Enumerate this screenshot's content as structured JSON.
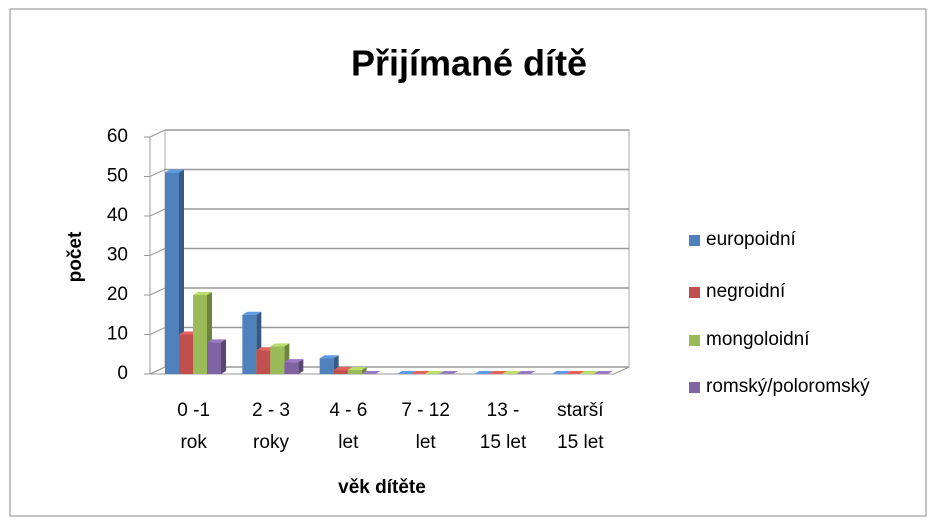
{
  "chart_data": {
    "type": "bar3d",
    "title": "Přijímané dítě",
    "x_label": "věk dítěte",
    "y_label": "počet",
    "categories": [
      [
        "0 -1",
        "rok"
      ],
      [
        "2 - 3",
        "roky"
      ],
      [
        "4 - 6",
        "let"
      ],
      [
        "7 - 12",
        "let"
      ],
      [
        "13 -",
        "15 let"
      ],
      [
        "starší",
        "15 let"
      ]
    ],
    "series": [
      {
        "name": "europoidní",
        "color": "#4f81bd",
        "values": [
          51,
          15,
          4,
          0,
          0,
          0
        ]
      },
      {
        "name": "negroidní",
        "color": "#c0504d",
        "values": [
          10,
          6,
          1,
          0,
          0,
          0
        ]
      },
      {
        "name": "mongoloidní",
        "color": "#9bbb59",
        "values": [
          20,
          7,
          1,
          0,
          0,
          0
        ]
      },
      {
        "name": "romský/poloromský",
        "color": "#8064a2",
        "values": [
          8,
          3,
          0,
          0,
          0,
          0
        ]
      }
    ],
    "ylim": [
      0,
      60
    ],
    "yticks": [
      0,
      10,
      20,
      30,
      40,
      50,
      60
    ],
    "grid": true,
    "legend": "right"
  }
}
